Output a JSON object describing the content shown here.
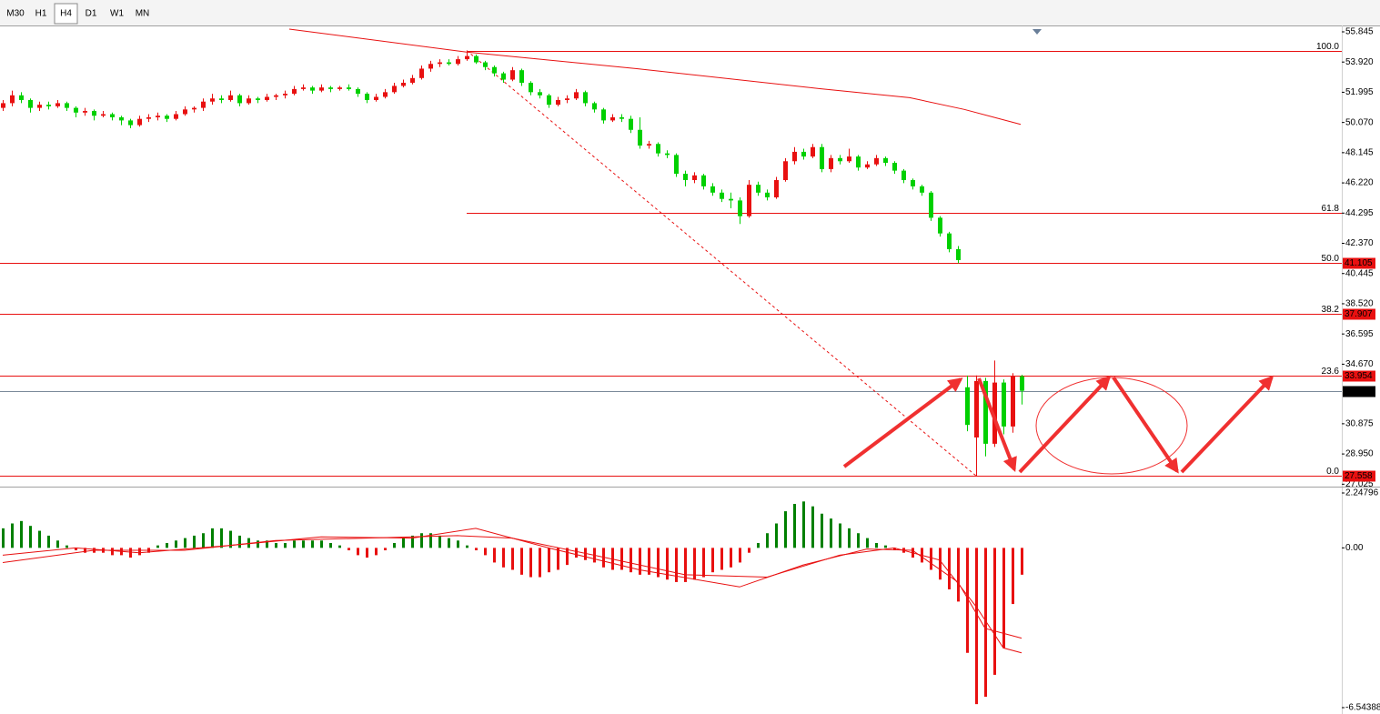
{
  "toolbar": {
    "buttons": [
      "M30",
      "H1",
      "H4",
      "D1",
      "W1",
      "MN"
    ],
    "active": "H4"
  },
  "chart_data": {
    "type": "candlestick",
    "up_color": "#e81010",
    "down_color": "#00d000",
    "ylim": [
      26.87,
      56.25
    ],
    "yticks": [
      55.845,
      {
        "value": 53.92,
        "label": "53.920"
      },
      51.995,
      {
        "value": 50.07,
        "label": "50.070"
      },
      48.145,
      {
        "value": 46.22,
        "label": "46.220"
      },
      44.295,
      {
        "value": 42.37,
        "label": "42.370"
      },
      40.445,
      {
        "value": 38.52,
        "label": "38.520"
      },
      36.595,
      {
        "value": 34.67,
        "label": "34.670"
      },
      30.875,
      {
        "value": 28.95,
        "label": "28.950"
      },
      27.025
    ],
    "candles": [
      [
        51.0,
        51.5,
        50.8,
        51.3
      ],
      [
        51.3,
        52.1,
        51.1,
        51.8
      ],
      [
        51.8,
        52.0,
        51.3,
        51.5
      ],
      [
        51.5,
        51.6,
        50.7,
        51.0
      ],
      [
        51.0,
        51.4,
        50.8,
        51.2
      ],
      [
        51.2,
        51.4,
        50.9,
        51.1
      ],
      [
        51.1,
        51.5,
        51.0,
        51.3
      ],
      [
        51.3,
        51.4,
        50.8,
        51.0
      ],
      [
        51.0,
        51.1,
        50.4,
        50.7
      ],
      [
        50.7,
        51.0,
        50.5,
        50.8
      ],
      [
        50.8,
        50.9,
        50.2,
        50.5
      ],
      [
        50.5,
        50.8,
        50.4,
        50.6
      ],
      [
        50.6,
        50.7,
        50.2,
        50.4
      ],
      [
        50.4,
        50.5,
        49.9,
        50.2
      ],
      [
        50.2,
        50.3,
        49.7,
        49.9
      ],
      [
        49.9,
        50.5,
        49.8,
        50.3
      ],
      [
        50.3,
        50.6,
        50.1,
        50.4
      ],
      [
        50.4,
        50.7,
        50.2,
        50.5
      ],
      [
        50.5,
        50.6,
        50.1,
        50.3
      ],
      [
        50.3,
        50.8,
        50.2,
        50.6
      ],
      [
        50.6,
        51.1,
        50.5,
        50.9
      ],
      [
        50.9,
        51.1,
        50.7,
        51.0
      ],
      [
        51.0,
        51.6,
        50.8,
        51.4
      ],
      [
        51.4,
        51.9,
        51.2,
        51.6
      ],
      [
        51.6,
        51.8,
        51.3,
        51.5
      ],
      [
        51.5,
        52.1,
        51.4,
        51.8
      ],
      [
        51.8,
        51.9,
        51.1,
        51.3
      ],
      [
        51.3,
        51.8,
        51.2,
        51.6
      ],
      [
        51.6,
        51.7,
        51.3,
        51.5
      ],
      [
        51.5,
        51.9,
        51.4,
        51.7
      ],
      [
        51.7,
        51.9,
        51.5,
        51.8
      ],
      [
        51.8,
        52.1,
        51.6,
        51.9
      ],
      [
        51.9,
        52.4,
        51.8,
        52.2
      ],
      [
        52.2,
        52.5,
        52.1,
        52.3
      ],
      [
        52.3,
        52.4,
        51.9,
        52.1
      ],
      [
        52.1,
        52.5,
        52.0,
        52.3
      ],
      [
        52.3,
        52.4,
        52.0,
        52.2
      ],
      [
        52.2,
        52.4,
        52.1,
        52.3
      ],
      [
        52.3,
        52.5,
        52.1,
        52.2
      ],
      [
        52.2,
        52.3,
        51.7,
        51.9
      ],
      [
        51.9,
        52.0,
        51.3,
        51.5
      ],
      [
        51.5,
        51.9,
        51.4,
        51.7
      ],
      [
        51.7,
        52.2,
        51.6,
        52.0
      ],
      [
        52.0,
        52.6,
        51.9,
        52.4
      ],
      [
        52.4,
        52.8,
        52.3,
        52.6
      ],
      [
        52.6,
        53.1,
        52.5,
        52.9
      ],
      [
        52.9,
        53.7,
        52.8,
        53.5
      ],
      [
        53.5,
        54.0,
        53.3,
        53.8
      ],
      [
        53.8,
        54.1,
        53.6,
        53.9
      ],
      [
        53.9,
        54.1,
        53.7,
        53.8
      ],
      [
        53.8,
        54.3,
        53.7,
        54.1
      ],
      [
        54.1,
        54.652,
        54.0,
        54.3
      ],
      [
        54.3,
        54.4,
        53.8,
        53.9
      ],
      [
        53.9,
        54.0,
        53.4,
        53.6
      ],
      [
        53.6,
        53.7,
        53.0,
        53.2
      ],
      [
        53.2,
        53.3,
        52.6,
        52.8
      ],
      [
        52.8,
        53.6,
        52.7,
        53.4
      ],
      [
        53.4,
        53.5,
        52.4,
        52.6
      ],
      [
        52.6,
        52.7,
        51.8,
        52.0
      ],
      [
        52.0,
        52.2,
        51.6,
        51.8
      ],
      [
        51.8,
        51.9,
        51.0,
        51.2
      ],
      [
        51.2,
        51.7,
        51.1,
        51.5
      ],
      [
        51.5,
        51.8,
        51.3,
        51.6
      ],
      [
        51.6,
        52.2,
        51.5,
        52.0
      ],
      [
        52.0,
        52.1,
        51.1,
        51.3
      ],
      [
        51.3,
        51.4,
        50.7,
        50.9
      ],
      [
        50.9,
        51.0,
        50.0,
        50.2
      ],
      [
        50.2,
        50.6,
        50.1,
        50.4
      ],
      [
        50.4,
        50.6,
        50.1,
        50.3
      ],
      [
        50.3,
        50.5,
        49.4,
        49.6
      ],
      [
        49.6,
        50.4,
        48.4,
        48.6
      ],
      [
        48.6,
        48.9,
        48.4,
        48.7
      ],
      [
        48.7,
        48.8,
        47.9,
        48.1
      ],
      [
        48.1,
        48.3,
        47.8,
        48.0
      ],
      [
        48.0,
        48.1,
        46.6,
        46.8
      ],
      [
        46.8,
        47.0,
        46.0,
        46.4
      ],
      [
        46.4,
        46.9,
        46.2,
        46.7
      ],
      [
        46.7,
        46.8,
        45.8,
        46.0
      ],
      [
        46.0,
        46.2,
        45.4,
        45.6
      ],
      [
        45.6,
        45.8,
        45.0,
        45.2
      ],
      [
        45.2,
        45.6,
        44.6,
        45.1
      ],
      [
        45.1,
        45.3,
        43.6,
        44.1
      ],
      [
        44.1,
        46.4,
        44.0,
        46.1
      ],
      [
        46.1,
        46.3,
        45.4,
        45.6
      ],
      [
        45.6,
        45.8,
        45.1,
        45.3
      ],
      [
        45.3,
        46.6,
        45.2,
        46.4
      ],
      [
        46.4,
        47.8,
        46.3,
        47.6
      ],
      [
        47.6,
        48.5,
        47.4,
        48.2
      ],
      [
        48.2,
        48.4,
        47.7,
        47.9
      ],
      [
        47.9,
        48.7,
        47.8,
        48.5
      ],
      [
        48.5,
        48.7,
        46.9,
        47.1
      ],
      [
        47.1,
        48.0,
        46.9,
        47.8
      ],
      [
        47.8,
        48.0,
        47.4,
        47.6
      ],
      [
        47.6,
        48.4,
        47.5,
        47.9
      ],
      [
        47.9,
        48.0,
        47.0,
        47.2
      ],
      [
        47.2,
        47.6,
        47.1,
        47.4
      ],
      [
        47.4,
        48.0,
        47.3,
        47.8
      ],
      [
        47.8,
        47.9,
        47.3,
        47.5
      ],
      [
        47.5,
        47.6,
        46.8,
        47.0
      ],
      [
        47.0,
        47.1,
        46.2,
        46.4
      ],
      [
        46.4,
        46.5,
        45.8,
        46.0
      ],
      [
        46.0,
        46.1,
        45.4,
        45.6
      ],
      [
        45.6,
        45.7,
        43.8,
        44.0
      ],
      [
        44.0,
        44.1,
        42.8,
        43.0
      ],
      [
        43.0,
        43.1,
        41.8,
        42.0
      ],
      [
        42.0,
        42.2,
        41.105,
        41.3
      ],
      [
        33.2,
        33.95,
        30.4,
        30.8
      ],
      [
        30.0,
        33.954,
        27.558,
        33.6
      ],
      [
        33.6,
        33.8,
        28.8,
        29.6
      ],
      [
        29.6,
        34.9,
        29.4,
        33.5
      ],
      [
        33.5,
        33.7,
        30.2,
        30.7
      ],
      [
        30.7,
        34.1,
        30.3,
        33.9
      ],
      [
        33.9,
        34.0,
        32.1,
        32.975
      ]
    ],
    "ma": {
      "color": "#e81010",
      "x": [
        31.5,
        50.9,
        69.7,
        89.7,
        99.7,
        105.7,
        111.9
      ],
      "values": [
        56.02,
        54.56,
        53.5,
        52.23,
        51.65,
        50.9,
        49.95
      ]
    },
    "trendline": {
      "color": "#e81010",
      "x": [
        51,
        107
      ],
      "values": [
        54.652,
        27.558
      ]
    },
    "fib": {
      "color": "#e81010",
      "anchor": 51,
      "levels": [
        {
          "label": "100.0",
          "price": 54.652,
          "full": false,
          "tag": false
        },
        {
          "label": "61.8",
          "price": 44.3,
          "full": false,
          "tag": false
        },
        {
          "label": "50.0",
          "price": 41.105,
          "full": true,
          "tag": true
        },
        {
          "label": "38.2",
          "price": 37.907,
          "full": true,
          "tag": true
        },
        {
          "label": "23.6",
          "price": 33.954,
          "full": true,
          "tag": true
        },
        {
          "label": "0.0",
          "price": 27.558,
          "full": true,
          "tag": true
        }
      ]
    },
    "current_price": 32.975,
    "macd": {
      "ylim": [
        -6.54388,
        2.24796
      ],
      "yticks": [
        2.24796,
        {
          "value": 0,
          "label": "0.00"
        },
        -6.54388
      ],
      "pos_color": "#008000",
      "neg_color": "#e81010",
      "histogram": [
        0.8,
        1.0,
        1.1,
        0.9,
        0.7,
        0.5,
        0.3,
        0.1,
        -0.1,
        -0.2,
        -0.2,
        -0.2,
        -0.3,
        -0.3,
        -0.4,
        -0.3,
        -0.2,
        0.1,
        0.2,
        0.3,
        0.4,
        0.5,
        0.6,
        0.8,
        0.8,
        0.7,
        0.5,
        0.4,
        0.3,
        0.3,
        0.2,
        0.2,
        0.3,
        0.3,
        0.3,
        0.3,
        0.2,
        0.1,
        -0.1,
        -0.3,
        -0.4,
        -0.3,
        -0.1,
        0.2,
        0.4,
        0.5,
        0.6,
        0.6,
        0.5,
        0.4,
        0.3,
        0.1,
        -0.1,
        -0.3,
        -0.6,
        -0.8,
        -0.9,
        -1.1,
        -1.2,
        -1.2,
        -1.0,
        -0.9,
        -0.7,
        -0.4,
        -0.5,
        -0.6,
        -0.8,
        -0.9,
        -0.9,
        -1.0,
        -1.1,
        -1.1,
        -1.2,
        -1.3,
        -1.4,
        -1.4,
        -1.3,
        -1.2,
        -1.0,
        -0.9,
        -0.8,
        -0.6,
        -0.2,
        0.2,
        0.6,
        1.0,
        1.5,
        1.8,
        1.9,
        1.7,
        1.4,
        1.2,
        1.0,
        0.8,
        0.6,
        0.4,
        0.2,
        0.1,
        -0.1,
        -0.2,
        -0.4,
        -0.6,
        -0.9,
        -1.3,
        -1.7,
        -2.2,
        -4.3,
        -6.4,
        -6.1,
        -5.2,
        -4.1,
        -2.3,
        -1.1
      ],
      "lines": [
        {
          "color": "#e81010",
          "x": [
            0,
            8,
            15,
            25,
            35,
            45,
            52,
            60,
            70,
            81,
            88,
            95,
            100,
            105,
            108,
            112
          ],
          "values": [
            -0.3,
            0.0,
            -0.2,
            0.1,
            0.45,
            0.4,
            0.8,
            0.0,
            -0.9,
            -1.6,
            -0.7,
            -0.05,
            -0.1,
            -1.4,
            -3.3,
            -3.7
          ]
        },
        {
          "color": "#e81010",
          "x": [
            0,
            10,
            20,
            30,
            40,
            50,
            56,
            65,
            75,
            84,
            92,
            98,
            103,
            107,
            110,
            112
          ],
          "values": [
            -0.6,
            -0.1,
            -0.1,
            0.3,
            0.4,
            0.5,
            0.4,
            -0.3,
            -1.1,
            -1.2,
            -0.3,
            0.0,
            -0.5,
            -2.4,
            -4.1,
            -4.3
          ]
        }
      ]
    }
  }
}
